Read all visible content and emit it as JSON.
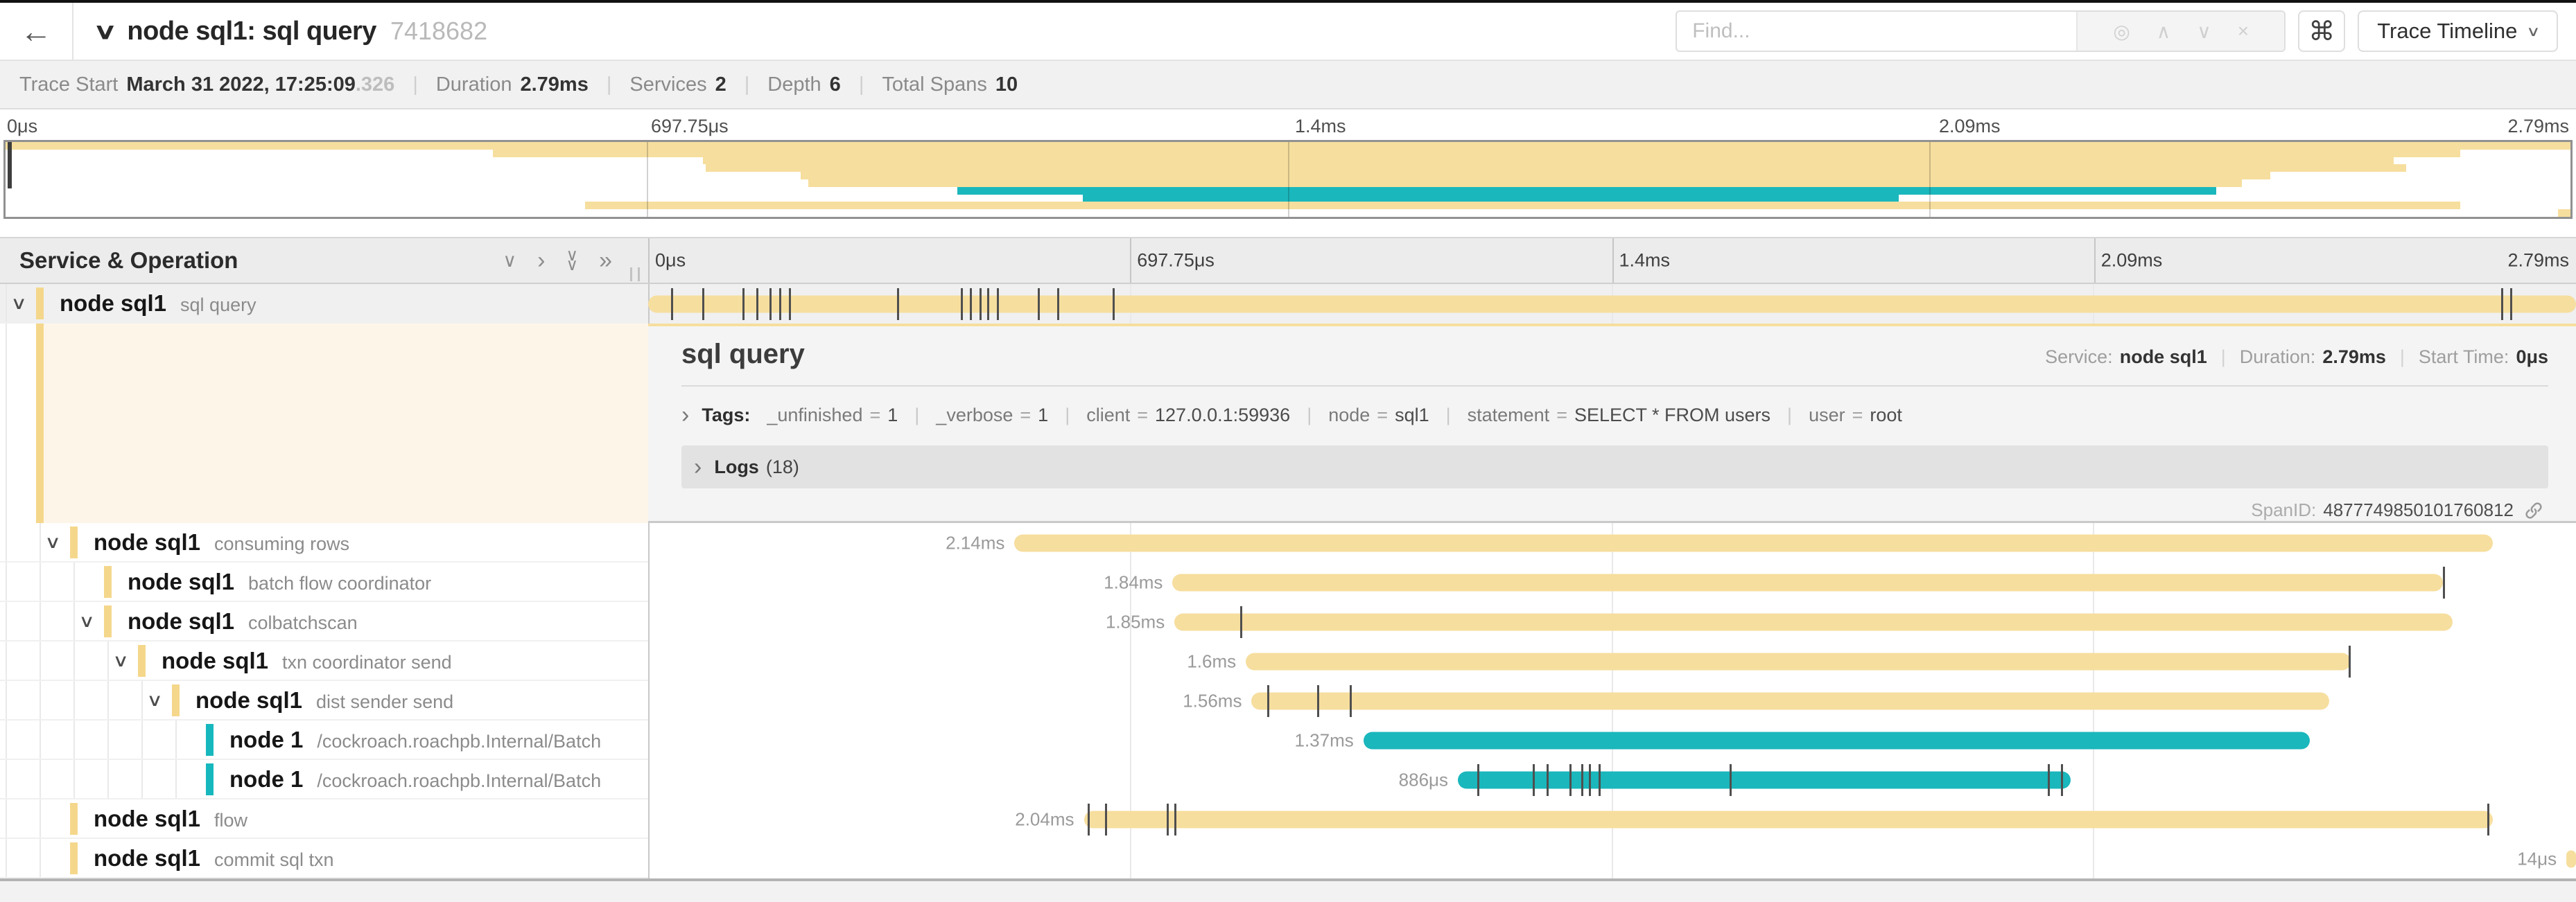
{
  "header": {
    "back_icon": "←",
    "collapse_icon": "∨",
    "title": "node sql1: sql query",
    "trace_id": "7418682",
    "find_placeholder": "Find...",
    "find_icons": [
      "◎",
      "∧",
      "∨",
      "×"
    ],
    "command_icon": "⌘",
    "view_button": "Trace Timeline",
    "view_caret": "∨"
  },
  "trace_info": [
    {
      "label": "Trace Start",
      "value": "March 31 2022, 17:25:09",
      "suffix": ".326"
    },
    {
      "label": "Duration",
      "value": "2.79ms"
    },
    {
      "label": "Services",
      "value": "2"
    },
    {
      "label": "Depth",
      "value": "6"
    },
    {
      "label": "Total Spans",
      "value": "10"
    }
  ],
  "ruler": {
    "ticks": [
      {
        "label": "0μs",
        "pos": 0
      },
      {
        "label": "697.75μs",
        "pos": 25
      },
      {
        "label": "1.4ms",
        "pos": 50
      },
      {
        "label": "2.09ms",
        "pos": 75
      },
      {
        "label": "2.79ms",
        "pos": 100
      }
    ]
  },
  "table_header": {
    "title": "Service & Operation",
    "collapse_down_icon": "∨",
    "collapse_right_icon": "›",
    "double_down_icon": "∨",
    "double_right_icon": "»"
  },
  "colors": {
    "tan": "#F6DE9E",
    "tan_strip": "#F5D78C",
    "teal": "#1AB7BC",
    "teal_strip": "#16B8BE",
    "cream": "#FDF6E8"
  },
  "spans": [
    {
      "service": "node sql1",
      "operation": "sql query",
      "indent": 0,
      "chevron": true,
      "color": "tan",
      "bar": {
        "start": 0,
        "width": 100,
        "label": ""
      },
      "ticks": [
        1.2,
        2.8,
        4.9,
        5.6,
        6.3,
        6.8,
        7.3,
        12.9,
        16.2,
        16.7,
        17.2,
        17.6,
        18.1,
        20.2,
        21.2,
        24.1,
        96.1,
        96.6
      ]
    },
    {
      "service": "node sql1",
      "operation": "consuming rows",
      "indent": 1,
      "chevron": true,
      "color": "tan",
      "bar": {
        "start": 19.0,
        "width": 76.7,
        "label": "2.14ms"
      },
      "ticks": []
    },
    {
      "service": "node sql1",
      "operation": "batch flow coordinator",
      "indent": 2,
      "chevron": false,
      "color": "tan",
      "bar": {
        "start": 27.2,
        "width": 65.9,
        "label": "1.84ms"
      },
      "ticks": [
        93.1
      ]
    },
    {
      "service": "node sql1",
      "operation": "colbatchscan",
      "indent": 2,
      "chevron": true,
      "color": "tan",
      "bar": {
        "start": 27.3,
        "width": 66.3,
        "label": "1.85ms"
      },
      "ticks": [
        30.7
      ]
    },
    {
      "service": "node sql1",
      "operation": "txn coordinator send",
      "indent": 3,
      "chevron": true,
      "color": "tan",
      "bar": {
        "start": 31.0,
        "width": 57.3,
        "label": "1.6ms"
      },
      "ticks": [
        88.2
      ]
    },
    {
      "service": "node sql1",
      "operation": "dist sender send",
      "indent": 4,
      "chevron": true,
      "color": "tan",
      "bar": {
        "start": 31.3,
        "width": 55.9,
        "label": "1.56ms"
      },
      "ticks": [
        32.1,
        34.7,
        36.4
      ]
    },
    {
      "service": "node 1",
      "operation": "/cockroach.roachpb.Internal/Batch",
      "indent": 5,
      "chevron": false,
      "color": "teal",
      "bar": {
        "start": 37.1,
        "width": 49.1,
        "label": "1.37ms"
      },
      "ticks": []
    },
    {
      "service": "node 1",
      "operation": "/cockroach.roachpb.Internal/Batch",
      "indent": 5,
      "chevron": false,
      "color": "teal",
      "bar": {
        "start": 42.0,
        "width": 31.8,
        "label": "886μs"
      },
      "ticks": [
        43.0,
        45.9,
        46.6,
        47.8,
        48.4,
        48.8,
        49.3,
        56.1,
        72.6,
        73.3
      ]
    },
    {
      "service": "node sql1",
      "operation": "flow",
      "indent": 1,
      "chevron": false,
      "color": "tan",
      "bar": {
        "start": 22.6,
        "width": 73.1,
        "label": "2.04ms"
      },
      "ticks": [
        22.8,
        23.7,
        26.9,
        27.3,
        95.4
      ]
    },
    {
      "service": "node sql1",
      "operation": "commit sql txn",
      "indent": 1,
      "chevron": false,
      "color": "tan",
      "bar": {
        "start": 99.5,
        "width": 0.5,
        "label": "14μs"
      },
      "ticks": []
    }
  ],
  "detail": {
    "title": "sql query",
    "meta": [
      {
        "label": "Service:",
        "value": "node sql1"
      },
      {
        "label": "Duration:",
        "value": "2.79ms"
      },
      {
        "label": "Start Time:",
        "value": "0μs"
      }
    ],
    "expander_icon": "›",
    "tags_label": "Tags:",
    "tags": [
      {
        "key": "_unfinished",
        "value": "1"
      },
      {
        "key": "_verbose",
        "value": "1"
      },
      {
        "key": "client",
        "value": "127.0.0.1:59936"
      },
      {
        "key": "node",
        "value": "sql1"
      },
      {
        "key": "statement",
        "value": "SELECT * FROM users"
      },
      {
        "key": "user",
        "value": "root"
      }
    ],
    "logs_label": "Logs",
    "logs_count": "(18)",
    "span_id_label": "SpanID:",
    "span_id": "4877749850101760812"
  }
}
